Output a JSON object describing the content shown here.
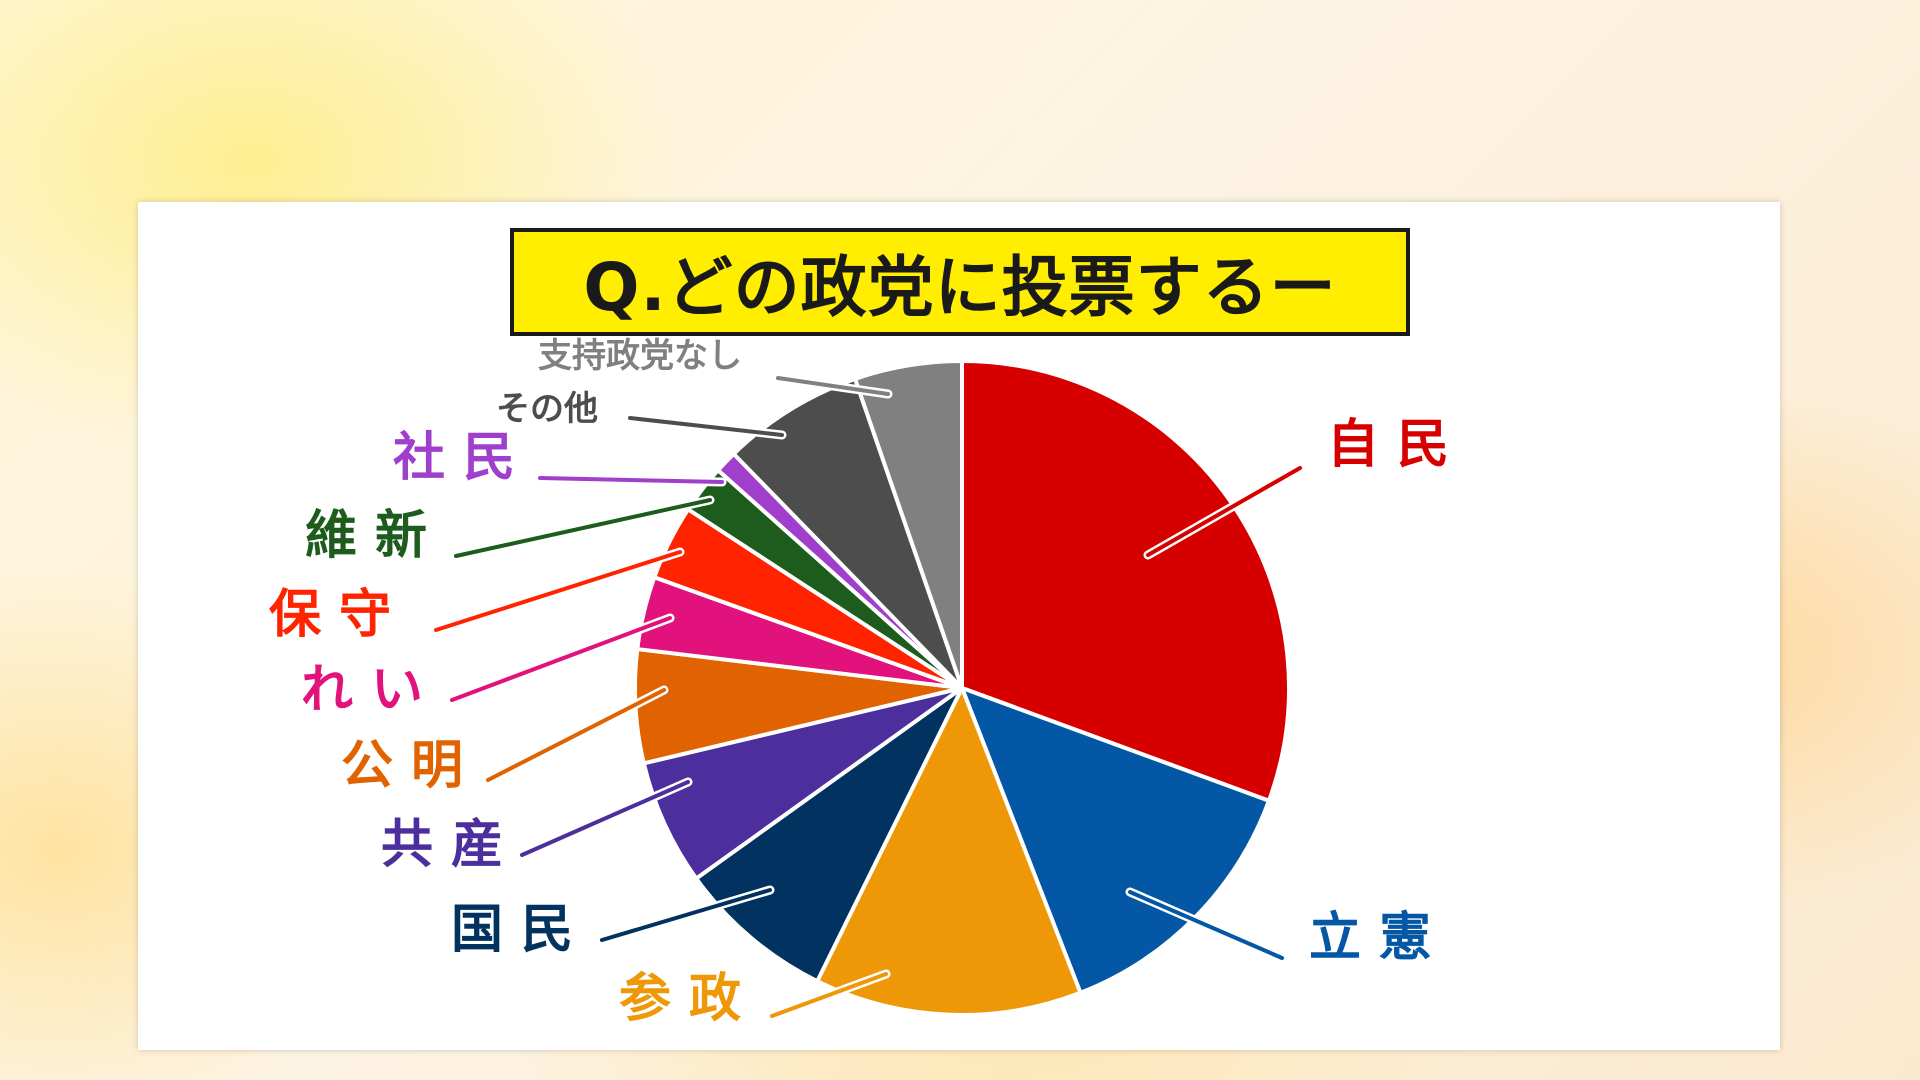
{
  "title": "Q.どの政党に投票するー",
  "chart_data": {
    "type": "pie",
    "start_angle": 0,
    "direction": "clockwise",
    "slices": [
      {
        "label": "自 民",
        "value": 30.6,
        "color": "#d70000",
        "label_color": "#d70000"
      },
      {
        "label": "立 憲",
        "value": 13.5,
        "color": "#0457a5",
        "label_color": "#0457a5"
      },
      {
        "label": "参 政",
        "value": 13.2,
        "color": "#ee9707",
        "label_color": "#ee9707"
      },
      {
        "label": "国 民",
        "value": 7.8,
        "color": "#02325f",
        "label_color": "#02325f"
      },
      {
        "label": "共 産",
        "value": 6.2,
        "color": "#4c2f9c",
        "label_color": "#4c2f9c"
      },
      {
        "label": "公 明",
        "value": 5.6,
        "color": "#e06200",
        "label_color": "#e06200"
      },
      {
        "label": "れ い",
        "value": 3.6,
        "color": "#e2127d",
        "label_color": "#e2127d"
      },
      {
        "label": "保 守",
        "value": 3.7,
        "color": "#ff2300",
        "label_color": "#ff2300"
      },
      {
        "label": "維 新",
        "value": 2.4,
        "color": "#1d5c1d",
        "label_color": "#1d5c1d"
      },
      {
        "label": "社 民",
        "value": 1.1,
        "color": "#9f3fcb",
        "label_color": "#9f3fcb"
      },
      {
        "label": "その他",
        "value": 7.0,
        "color": "#4d4d4d",
        "label_color": "#4d4d4d"
      },
      {
        "label": "支持政党なし",
        "value": 5.3,
        "color": "#808080",
        "label_color": "#808080"
      }
    ]
  }
}
